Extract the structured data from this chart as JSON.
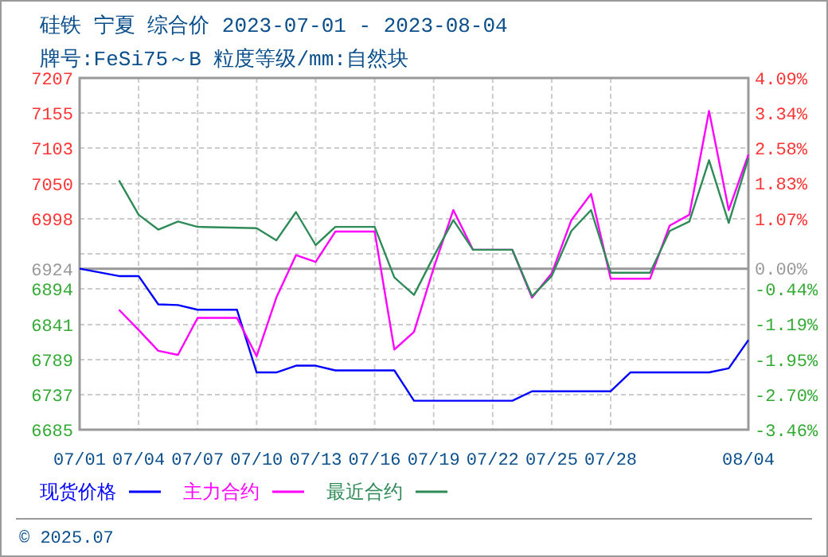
{
  "chart_data": {
    "type": "line",
    "title": "硅铁 宁夏 综合价 2023-07-01 - 2023-08-04",
    "subtitle": "牌号:FeSi75～B 粒度等级/mm:自然块",
    "xlim": [
      "2023-07-01",
      "2023-08-04"
    ],
    "xticks": [
      {
        "value": "2023-07-01",
        "label": "07/01"
      },
      {
        "value": "2023-07-04",
        "label": "07/04"
      },
      {
        "value": "2023-07-07",
        "label": "07/07"
      },
      {
        "value": "2023-07-10",
        "label": "07/10"
      },
      {
        "value": "2023-07-13",
        "label": "07/13"
      },
      {
        "value": "2023-07-16",
        "label": "07/16"
      },
      {
        "value": "2023-07-19",
        "label": "07/19"
      },
      {
        "value": "2023-07-22",
        "label": "07/22"
      },
      {
        "value": "2023-07-25",
        "label": "07/25"
      },
      {
        "value": "2023-07-28",
        "label": "07/28"
      },
      {
        "value": "2023-08-04",
        "label": "08/04"
      }
    ],
    "ylim": [
      6685,
      7207
    ],
    "yticks": [
      6685,
      6737,
      6789,
      6841,
      6894,
      6924,
      {
        "value": 6946,
        "label": null
      },
      6998,
      7050,
      7103,
      7155,
      7207
    ],
    "y2lim": [
      -3.46,
      4.09
    ],
    "y2ticks": [
      {
        "value": -3.46,
        "label": "-3.46%"
      },
      {
        "value": -2.7,
        "label": "-2.70%"
      },
      {
        "value": -1.95,
        "label": "-1.95%"
      },
      {
        "value": -1.19,
        "label": "-1.19%"
      },
      {
        "value": -0.44,
        "label": "-0.44%"
      },
      {
        "value": 0,
        "label": "0.00%"
      },
      {
        "value": 1.07,
        "label": "1.07%"
      },
      {
        "value": 1.83,
        "label": "1.83%"
      },
      {
        "value": 2.58,
        "label": "2.58%"
      },
      {
        "value": 3.34,
        "label": "3.34%"
      },
      {
        "value": 4.09,
        "label": "4.09%"
      }
    ],
    "ref_lines": [
      {
        "axis": "y",
        "value": 6924,
        "color": "#999999"
      }
    ],
    "grid": true,
    "legend": "bottom",
    "series": [
      {
        "name": "现货价格",
        "color": "#0000ff",
        "x": [
          "2023-07-01",
          "2023-07-03",
          "2023-07-04",
          "2023-07-05",
          "2023-07-06",
          "2023-07-07",
          "2023-07-09",
          "2023-07-10",
          "2023-07-11",
          "2023-07-12",
          "2023-07-13",
          "2023-07-14",
          "2023-07-17",
          "2023-07-18",
          "2023-07-23",
          "2023-07-24",
          "2023-07-28",
          "2023-07-29",
          "2023-08-02",
          "2023-08-03",
          "2023-08-04"
        ],
        "values": [
          6924,
          6913,
          6913,
          6871,
          6870,
          6863,
          6863,
          6770,
          6770,
          6780,
          6780,
          6773,
          6773,
          6728,
          6728,
          6742,
          6742,
          6770,
          6770,
          6776,
          6818
        ]
      },
      {
        "name": "主力合约",
        "color": "#ff00ff",
        "x": [
          "2023-07-03",
          "2023-07-04",
          "2023-07-05",
          "2023-07-06",
          "2023-07-07",
          "2023-07-09",
          "2023-07-10",
          "2023-07-11",
          "2023-07-12",
          "2023-07-13",
          "2023-07-14",
          "2023-07-16",
          "2023-07-17",
          "2023-07-18",
          "2023-07-19",
          "2023-07-20",
          "2023-07-21",
          "2023-07-23",
          "2023-07-24",
          "2023-07-25",
          "2023-07-26",
          "2023-07-27",
          "2023-07-28",
          "2023-07-30",
          "2023-07-31",
          "2023-08-01",
          "2023-08-02",
          "2023-08-03",
          "2023-08-04"
        ],
        "values": [
          6863,
          6833,
          6802,
          6796,
          6851,
          6851,
          6794,
          6881,
          6944,
          6934,
          6979,
          6979,
          6804,
          6830,
          6925,
          7011,
          6952,
          6952,
          6881,
          6917,
          6996,
          7035,
          6909,
          6909,
          6988,
          7004,
          7158,
          7011,
          7093
        ]
      },
      {
        "name": "最近合约",
        "color": "#2e8b57",
        "x": [
          "2023-07-03",
          "2023-07-04",
          "2023-07-05",
          "2023-07-06",
          "2023-07-07",
          "2023-07-10",
          "2023-07-11",
          "2023-07-12",
          "2023-07-13",
          "2023-07-14",
          "2023-07-16",
          "2023-07-17",
          "2023-07-18",
          "2023-07-19",
          "2023-07-20",
          "2023-07-21",
          "2023-07-23",
          "2023-07-24",
          "2023-07-25",
          "2023-07-26",
          "2023-07-27",
          "2023-07-28",
          "2023-07-30",
          "2023-07-31",
          "2023-08-01",
          "2023-08-02",
          "2023-08-03",
          "2023-08-04"
        ],
        "values": [
          7055,
          7004,
          6982,
          6994,
          6986,
          6984,
          6966,
          7008,
          6959,
          6986,
          6986,
          6911,
          6885,
          6942,
          6996,
          6952,
          6952,
          6883,
          6913,
          6980,
          7011,
          6918,
          6918,
          6980,
          6994,
          7085,
          6992,
          7088
        ]
      }
    ],
    "annotations": [
      "© 2025.07"
    ]
  }
}
